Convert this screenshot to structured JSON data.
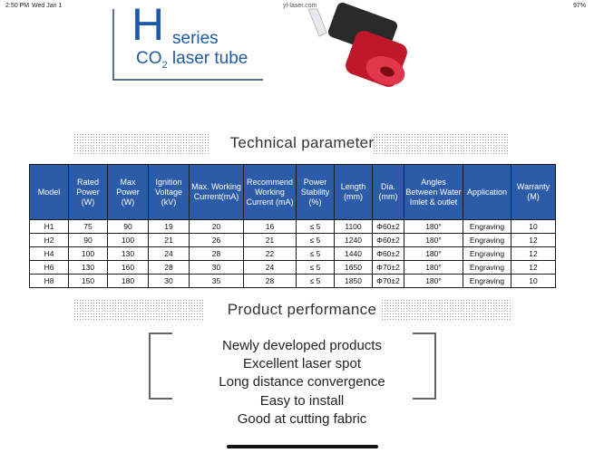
{
  "status_bar": {
    "time": "2:50 PM",
    "date": "Wed Jan 1",
    "url": "yl-laser.com",
    "battery": "97%"
  },
  "header": {
    "letter": "H",
    "series": "series",
    "product_parts": [
      "CO",
      "2",
      " laser tube"
    ]
  },
  "technical": {
    "title": "Technical parameter"
  },
  "table": {
    "headers": [
      "Model",
      "Rated Power (W)",
      "Max Power (W)",
      "Ignition Voltage (kV)",
      "Max. Working Current(mA)",
      "Recommend Working Current (mA)",
      "Power Stability (%)",
      "Length (mm)",
      "Dia. (mm)",
      "Angles Between Water Imlet & outlet",
      "Application",
      "Warranty (M)"
    ],
    "rows": [
      [
        "H1",
        "75",
        "90",
        "19",
        "20",
        "16",
        "≤ 5",
        "1100",
        "Φ60±2",
        "180°",
        "Engraving",
        "10"
      ],
      [
        "H2",
        "90",
        "100",
        "21",
        "26",
        "21",
        "≤ 5",
        "1240",
        "Φ60±2",
        "180°",
        "Engraving",
        "12"
      ],
      [
        "H4",
        "100",
        "130",
        "24",
        "28",
        "22",
        "≤ 5",
        "1440",
        "Φ60±2",
        "180°",
        "Engraving",
        "12"
      ],
      [
        "H6",
        "130",
        "160",
        "28",
        "30",
        "24",
        "≤ 5",
        "1650",
        "Φ70±2",
        "180°",
        "Engraving",
        "12"
      ],
      [
        "H8",
        "150",
        "180",
        "30",
        "35",
        "28",
        "≤ 5",
        "1850",
        "Φ70±2",
        "180°",
        "Engraving",
        "10"
      ]
    ]
  },
  "performance": {
    "title": "Product performance",
    "items": [
      "Newly developed products",
      "Excellent laser spot",
      "Long distance convergence",
      "Easy to install",
      "Good at cutting fabric"
    ]
  }
}
